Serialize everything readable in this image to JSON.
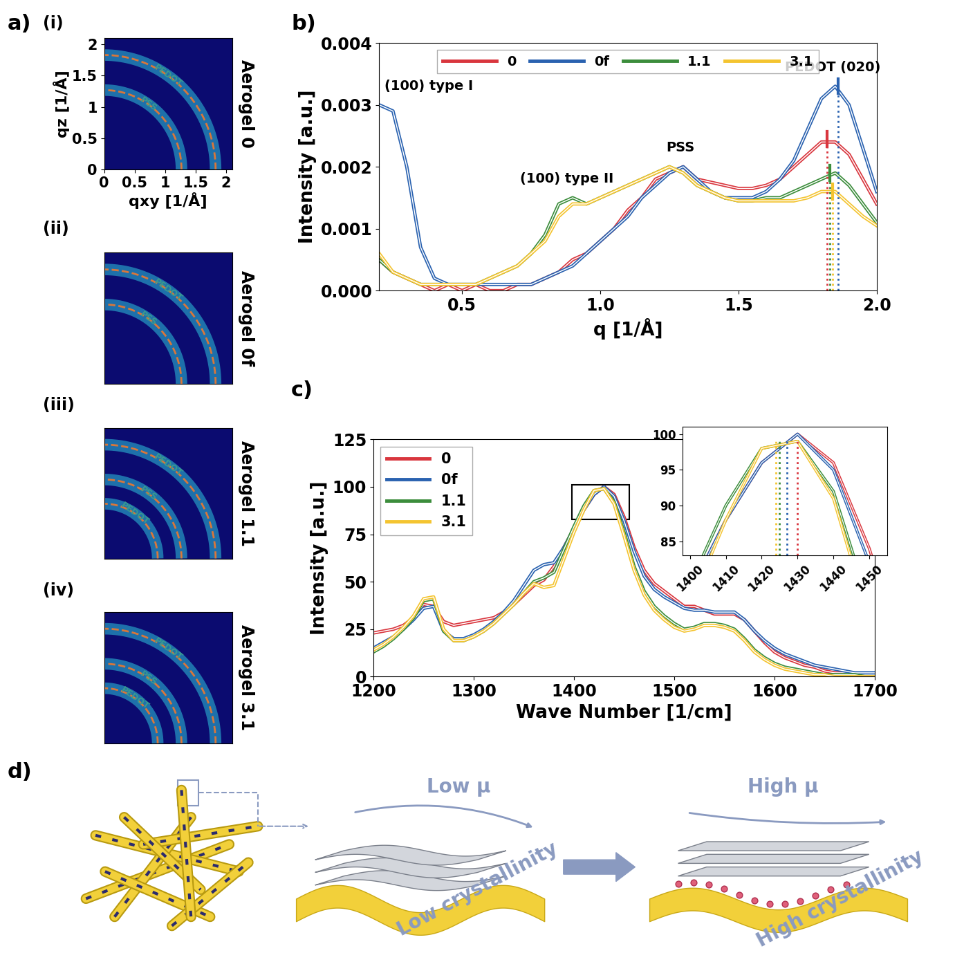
{
  "panel_a": {
    "label": "a)",
    "xlabel": "qxy [1/Å]",
    "ylabel": "qz [1/Å]",
    "xlim": [
      0,
      2.1
    ],
    "ylim": [
      0,
      2.1
    ],
    "xticks": [
      0,
      0.5,
      1,
      1.5,
      2
    ],
    "yticks": [
      0,
      0.5,
      1,
      1.5,
      2
    ],
    "images": [
      {
        "label": "(i)",
        "title": "Aerogel 0",
        "tick_labels": true,
        "rings": [
          {
            "q": 1.27,
            "name": "PSS"
          },
          {
            "q": 1.83,
            "name": "PEDOT"
          }
        ]
      },
      {
        "label": "(ii)",
        "title": "Aerogel 0f",
        "tick_labels": false,
        "rings": [
          {
            "q": 1.27,
            "name": "PSS"
          },
          {
            "q": 1.83,
            "name": "PEDOT"
          }
        ]
      },
      {
        "label": "(iii)",
        "title": "Aerogel 1.1",
        "tick_labels": false,
        "rings": [
          {
            "q": 0.88,
            "name": "PEDOT"
          },
          {
            "q": 1.27,
            "name": "PSS"
          },
          {
            "q": 1.83,
            "name": "PEDOT"
          }
        ]
      },
      {
        "label": "(iv)",
        "title": "Aerogel 3.1",
        "tick_labels": false,
        "rings": [
          {
            "q": 0.88,
            "name": "PEDOT"
          },
          {
            "q": 1.27,
            "name": "PSS"
          },
          {
            "q": 1.83,
            "name": "PEDOT"
          }
        ]
      }
    ]
  },
  "chart_data": [
    {
      "type": "line",
      "label": "b)",
      "xlabel": "q [1/Å]",
      "ylabel": "Intensity [a.u.]",
      "xlim": [
        0.2,
        2.0
      ],
      "ylim": [
        0.0,
        0.004
      ],
      "xticks": [
        0.5,
        1.0,
        1.5,
        2.0
      ],
      "yticks": [
        {
          "value": 0.0,
          "label": "0.000"
        },
        {
          "value": 0.001,
          "label": "0.001"
        },
        {
          "value": 0.002,
          "label": "0.002"
        },
        {
          "value": 0.003,
          "label": "0.003"
        },
        {
          "value": 0.004,
          "label": "0.004"
        }
      ],
      "legend": "upper center",
      "annotations": [
        {
          "text": "(100) type I",
          "q": 0.22
        },
        {
          "text": "(100) type II",
          "q": 0.88
        },
        {
          "text": "PSS",
          "q": 1.29
        },
        {
          "text": "PEDOT (020)",
          "q": 1.84
        }
      ],
      "x": [
        0.2,
        0.25,
        0.3,
        0.35,
        0.4,
        0.45,
        0.5,
        0.55,
        0.6,
        0.65,
        0.7,
        0.75,
        0.8,
        0.85,
        0.9,
        0.95,
        1.0,
        1.05,
        1.1,
        1.15,
        1.2,
        1.25,
        1.3,
        1.35,
        1.4,
        1.45,
        1.5,
        1.55,
        1.6,
        1.65,
        1.7,
        1.75,
        1.8,
        1.85,
        1.9,
        1.95,
        2.0
      ],
      "series": [
        {
          "name": "0",
          "color": "#d9363e",
          "peak": {
            "q": 1.82,
            "intensity": 0.00245
          },
          "values": [
            0.0005,
            0.0003,
            0.0002,
            0.0001,
            0.0,
            0.0001,
            0.0,
            0.0001,
            0.0,
            0.0,
            0.0001,
            0.0001,
            0.0002,
            0.0003,
            0.0005,
            0.0006,
            0.0008,
            0.001,
            0.0013,
            0.0015,
            0.0018,
            0.0019,
            0.002,
            0.0018,
            0.00175,
            0.0017,
            0.00165,
            0.00165,
            0.0017,
            0.0018,
            0.002,
            0.0022,
            0.0024,
            0.0024,
            0.0022,
            0.0018,
            0.0014
          ]
        },
        {
          "name": "0f",
          "color": "#2a62b0",
          "peak": {
            "q": 1.86,
            "intensity": 0.0033
          },
          "values": [
            0.003,
            0.0029,
            0.002,
            0.0007,
            0.0002,
            0.0001,
            0.0001,
            0.0001,
            0.0001,
            0.0001,
            0.0001,
            0.0001,
            0.0002,
            0.0003,
            0.0004,
            0.0006,
            0.0008,
            0.001,
            0.0012,
            0.0015,
            0.0017,
            0.0019,
            0.002,
            0.0018,
            0.0016,
            0.0015,
            0.0015,
            0.0015,
            0.0016,
            0.0018,
            0.0021,
            0.0026,
            0.0031,
            0.0033,
            0.003,
            0.0023,
            0.0016
          ]
        },
        {
          "name": "1.1",
          "color": "#3c8d3c",
          "peak": {
            "q": 1.83,
            "intensity": 0.0019
          },
          "values": [
            0.0005,
            0.0003,
            0.0002,
            0.0001,
            0.0001,
            0.0001,
            0.0001,
            0.0001,
            0.0002,
            0.0003,
            0.0004,
            0.0006,
            0.0009,
            0.0014,
            0.0015,
            0.0014,
            0.0015,
            0.0016,
            0.0017,
            0.0018,
            0.0019,
            0.002,
            0.0019,
            0.0017,
            0.0016,
            0.0015,
            0.00145,
            0.00145,
            0.0015,
            0.0015,
            0.0016,
            0.0017,
            0.0018,
            0.0019,
            0.0017,
            0.0014,
            0.0011
          ]
        },
        {
          "name": "3.1",
          "color": "#f4c430",
          "peak": {
            "q": 1.84,
            "intensity": 0.0016
          },
          "values": [
            0.0006,
            0.0003,
            0.0002,
            0.0001,
            0.0001,
            0.0001,
            0.0001,
            0.0001,
            0.0002,
            0.0003,
            0.0004,
            0.0006,
            0.0008,
            0.0012,
            0.0014,
            0.0014,
            0.0015,
            0.0016,
            0.0017,
            0.0018,
            0.0019,
            0.002,
            0.0019,
            0.0017,
            0.0016,
            0.0015,
            0.00145,
            0.00145,
            0.00145,
            0.00145,
            0.00145,
            0.0015,
            0.0016,
            0.0016,
            0.0014,
            0.0012,
            0.00105
          ]
        }
      ]
    },
    {
      "type": "line",
      "label": "c)",
      "xlabel": "Wave Number [1/cm]",
      "ylabel": "Intensity [a.u.]",
      "xlim": [
        1200,
        1700
      ],
      "ylim": [
        0,
        125
      ],
      "xticks": [
        1200,
        1300,
        1400,
        1500,
        1600,
        1700
      ],
      "yticks": [
        0,
        25,
        50,
        75,
        100,
        125
      ],
      "legend": "upper left",
      "inset": {
        "xlim": [
          1398,
          1455
        ],
        "ylim": [
          83,
          101
        ],
        "xticks": [
          1400,
          1410,
          1420,
          1430,
          1440,
          1450
        ],
        "yticks": [
          85,
          90,
          95,
          100
        ]
      },
      "x": [
        1200,
        1210,
        1220,
        1230,
        1240,
        1250,
        1260,
        1270,
        1280,
        1290,
        1300,
        1310,
        1320,
        1330,
        1340,
        1350,
        1360,
        1370,
        1380,
        1390,
        1400,
        1410,
        1420,
        1430,
        1440,
        1450,
        1460,
        1470,
        1480,
        1490,
        1500,
        1510,
        1520,
        1530,
        1540,
        1550,
        1560,
        1570,
        1580,
        1590,
        1600,
        1610,
        1620,
        1630,
        1640,
        1650,
        1660,
        1670,
        1680,
        1690,
        1700
      ],
      "series": [
        {
          "name": "0",
          "color": "#d9363e",
          "peak": 1430,
          "values": [
            23,
            24,
            25,
            27,
            31,
            38,
            37,
            29,
            27,
            28,
            29,
            30,
            31,
            34,
            38,
            43,
            48,
            51,
            58,
            68,
            78,
            88,
            96,
            100,
            96,
            84,
            68,
            56,
            49,
            45,
            41,
            37,
            37,
            35,
            33,
            33,
            33,
            30,
            24,
            18,
            13,
            10,
            8,
            6,
            5,
            3,
            2,
            2,
            1,
            1,
            1
          ]
        },
        {
          "name": "0f",
          "color": "#2a62b0",
          "peak": 1427,
          "values": [
            15,
            18,
            21,
            25,
            30,
            36,
            37,
            24,
            20,
            20,
            22,
            25,
            29,
            34,
            40,
            48,
            56,
            59,
            60,
            68,
            78,
            88,
            96,
            100,
            95,
            82,
            66,
            53,
            46,
            42,
            39,
            36,
            35,
            35,
            34,
            34,
            34,
            30,
            24,
            19,
            15,
            12,
            10,
            8,
            6,
            5,
            4,
            3,
            2,
            2,
            2
          ]
        },
        {
          "name": "1.1",
          "color": "#3c8d3c",
          "peak": 1425,
          "values": [
            13,
            16,
            20,
            25,
            31,
            40,
            41,
            24,
            19,
            19,
            21,
            24,
            28,
            33,
            38,
            44,
            50,
            52,
            55,
            67,
            79,
            90,
            98,
            99,
            92,
            76,
            58,
            45,
            37,
            32,
            28,
            25,
            26,
            28,
            28,
            27,
            25,
            20,
            14,
            10,
            7,
            5,
            4,
            3,
            2,
            1,
            1,
            1,
            1,
            0,
            0
          ]
        },
        {
          "name": "3.1",
          "color": "#f4c430",
          "peak": 1424,
          "values": [
            14,
            17,
            21,
            26,
            32,
            41,
            42,
            25,
            19,
            19,
            21,
            24,
            28,
            33,
            38,
            44,
            49,
            47,
            48,
            62,
            76,
            88,
            98,
            99,
            91,
            74,
            56,
            43,
            35,
            30,
            26,
            24,
            25,
            27,
            27,
            26,
            24,
            19,
            13,
            9,
            6,
            4,
            3,
            2,
            1,
            1,
            0,
            0,
            0,
            0,
            0
          ]
        }
      ]
    }
  ],
  "panel_d": {
    "label": "d)",
    "states": [
      {
        "mobility": "Low μ",
        "crystallinity": "Low crystallinity"
      },
      {
        "mobility": "High μ",
        "crystallinity": "High crystallinity"
      }
    ]
  }
}
